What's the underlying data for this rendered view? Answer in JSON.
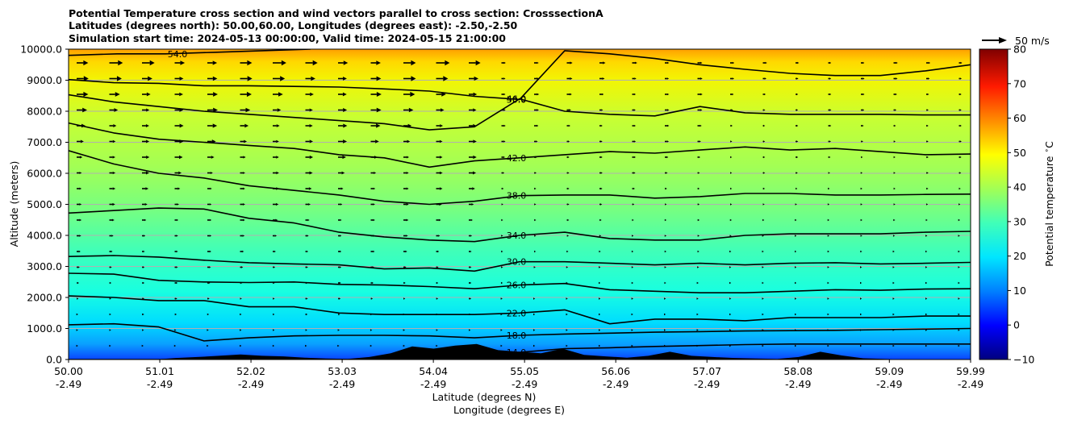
{
  "chart_data": {
    "type": "heatmap",
    "title_lines": [
      "Potential Temperature cross section and wind vectors parallel to cross section: CrosssectionA",
      "Latitudes (degrees north): 50.00,60.00, Longitudes (degrees east): -2.50,-2.50",
      "Simulation start time: 2024-05-13 00:00:00, Valid time: 2024-05-15 21:00:00"
    ],
    "xlabel_lines": [
      "Latitude (degrees N)",
      "Longitude (degrees E)"
    ],
    "ylabel": "Altitude (meters)",
    "x_ticks": [
      {
        "lat": "50.00",
        "lon": "-2.49"
      },
      {
        "lat": "51.01",
        "lon": "-2.49"
      },
      {
        "lat": "52.02",
        "lon": "-2.49"
      },
      {
        "lat": "53.03",
        "lon": "-2.49"
      },
      {
        "lat": "54.04",
        "lon": "-2.49"
      },
      {
        "lat": "55.05",
        "lon": "-2.49"
      },
      {
        "lat": "56.06",
        "lon": "-2.49"
      },
      {
        "lat": "57.07",
        "lon": "-2.49"
      },
      {
        "lat": "58.08",
        "lon": "-2.49"
      },
      {
        "lat": "59.09",
        "lon": "-2.49"
      },
      {
        "lat": "59.99",
        "lon": "-2.49"
      }
    ],
    "xlim": [
      50.0,
      59.99
    ],
    "y_ticks": [
      "0.0",
      "1000.0",
      "2000.0",
      "3000.0",
      "4000.0",
      "5000.0",
      "6000.0",
      "7000.0",
      "8000.0",
      "9000.0",
      "10000.0"
    ],
    "ylim": [
      0,
      10000
    ],
    "grid": "horizontal",
    "colorbar": {
      "label": "Potential temperature $^\\circ$C",
      "ticks": [
        "−10",
        "0",
        "10",
        "20",
        "30",
        "40",
        "50",
        "60",
        "70",
        "80"
      ],
      "range": [
        -10,
        80
      ],
      "colormap": "jet"
    },
    "quiver_key": {
      "label": "50 m/s",
      "value": 50
    },
    "contour_labels": [
      "14.0",
      "18.0",
      "22.0",
      "26.0",
      "30.0",
      "34.0",
      "38.0",
      "42.0",
      "46.0",
      "50.0",
      "54.0"
    ],
    "contours": [
      {
        "level": 14.0,
        "label": "14.0",
        "alt": [
          0,
          0,
          0,
          0,
          0,
          0,
          0,
          0,
          0,
          200,
          230,
          350,
          380,
          420,
          450,
          480,
          500,
          500,
          500,
          500,
          500
        ]
      },
      {
        "level": 18.0,
        "label": "18.0",
        "alt": [
          1120,
          1150,
          1050,
          600,
          700,
          760,
          780,
          780,
          760,
          700,
          780,
          820,
          850,
          880,
          900,
          920,
          930,
          940,
          960,
          980,
          1000
        ]
      },
      {
        "level": 22.0,
        "label": "22.0",
        "alt": [
          2050,
          2000,
          1900,
          1900,
          1700,
          1700,
          1500,
          1450,
          1450,
          1450,
          1500,
          1600,
          1150,
          1300,
          1300,
          1250,
          1350,
          1350,
          1350,
          1400,
          1400
        ]
      },
      {
        "level": 26.0,
        "label": "26.0",
        "alt": [
          2780,
          2750,
          2550,
          2500,
          2480,
          2500,
          2420,
          2400,
          2350,
          2280,
          2400,
          2450,
          2250,
          2200,
          2150,
          2150,
          2200,
          2250,
          2230,
          2270,
          2280
        ]
      },
      {
        "level": 30.0,
        "label": "30.0",
        "alt": [
          3320,
          3350,
          3300,
          3200,
          3120,
          3080,
          3050,
          2920,
          2950,
          2850,
          3150,
          3150,
          3100,
          3050,
          3100,
          3050,
          3100,
          3120,
          3080,
          3100,
          3130
        ]
      },
      {
        "level": 34.0,
        "label": "34.0",
        "alt": [
          4720,
          4800,
          4880,
          4850,
          4550,
          4400,
          4100,
          3950,
          3850,
          3800,
          4000,
          4100,
          3900,
          3850,
          3850,
          4000,
          4050,
          4050,
          4050,
          4100,
          4130
        ]
      },
      {
        "level": 38.0,
        "label": "38.0",
        "alt": [
          6730,
          6300,
          6000,
          5850,
          5600,
          5450,
          5300,
          5100,
          5000,
          5100,
          5280,
          5300,
          5300,
          5200,
          5250,
          5350,
          5350,
          5300,
          5300,
          5320,
          5330
        ]
      },
      {
        "level": 42.0,
        "label": "42.0",
        "alt": [
          7620,
          7300,
          7100,
          7000,
          6900,
          6800,
          6600,
          6500,
          6200,
          6400,
          6500,
          6600,
          6700,
          6650,
          6750,
          6850,
          6750,
          6800,
          6700,
          6600,
          6620
        ]
      },
      {
        "level": 46.0,
        "label": "46.0",
        "alt": [
          8530,
          8300,
          8150,
          8000,
          7900,
          7800,
          7700,
          7600,
          7400,
          7500,
          8400,
          8000,
          7900,
          7850,
          8150,
          7950,
          7900,
          7900,
          7900,
          7880,
          7880
        ]
      },
      {
        "level": 50.0,
        "label": "50.0",
        "alt": [
          9020,
          8920,
          8900,
          8820,
          8820,
          8800,
          8780,
          8720,
          8650,
          8480,
          8380,
          9950,
          9850,
          9700,
          9500,
          9350,
          9220,
          9150,
          9150,
          9300,
          9500
        ]
      },
      {
        "level": 54.0,
        "label": "54.0",
        "alt": [
          9800,
          9850,
          9850,
          9900,
          9950,
          10000
        ]
      }
    ],
    "terrain_alt": [
      0,
      0,
      0,
      0,
      0,
      50,
      80,
      120,
      160,
      120,
      100,
      60,
      30,
      20,
      80,
      200,
      420,
      350,
      450,
      500,
      300,
      250,
      200,
      350,
      150,
      100,
      60,
      120,
      250,
      120,
      80,
      50,
      30,
      20,
      80,
      250,
      130,
      40,
      20,
      0,
      0,
      0,
      0
    ]
  }
}
